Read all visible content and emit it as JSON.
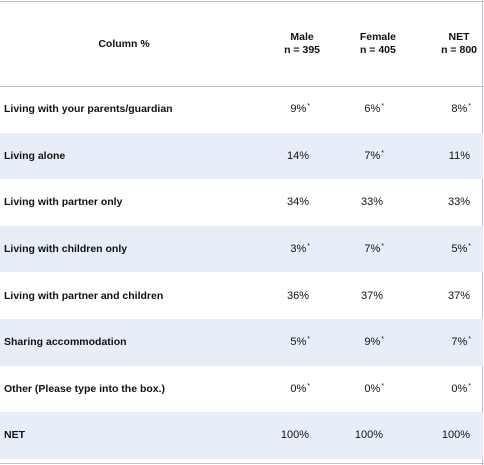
{
  "table": {
    "header": {
      "label": "Column %",
      "columns": [
        {
          "name": "Male",
          "n": "n = 395"
        },
        {
          "name": "Female",
          "n": "n = 405"
        },
        {
          "name": "NET",
          "n": "n = 800"
        }
      ]
    },
    "rows": [
      {
        "label": "Living with your parents/guardian",
        "values": [
          "9%",
          "6%",
          "8%"
        ],
        "sig": [
          "*",
          "*",
          "*"
        ]
      },
      {
        "label": "Living alone",
        "values": [
          "14%",
          "7%",
          "11%"
        ],
        "sig": [
          "",
          "*",
          ""
        ]
      },
      {
        "label": "Living with partner only",
        "values": [
          "34%",
          "33%",
          "33%"
        ],
        "sig": [
          "",
          "",
          ""
        ]
      },
      {
        "label": "Living with children only",
        "values": [
          "3%",
          "7%",
          "5%"
        ],
        "sig": [
          "*",
          "*",
          "*"
        ]
      },
      {
        "label": "Living with partner and children",
        "values": [
          "36%",
          "37%",
          "37%"
        ],
        "sig": [
          "",
          "",
          ""
        ]
      },
      {
        "label": "Sharing accommodation",
        "values": [
          "5%",
          "9%",
          "7%"
        ],
        "sig": [
          "*",
          "*",
          "*"
        ]
      },
      {
        "label": "Other (Please type into the box.)",
        "values": [
          "0%",
          "0%",
          "0%"
        ],
        "sig": [
          "*",
          "*",
          "*"
        ]
      },
      {
        "label": "NET",
        "values": [
          "100%",
          "100%",
          "100%"
        ],
        "sig": [
          "",
          "",
          ""
        ]
      }
    ]
  },
  "colors": {
    "shaded_row": "#e8eef8",
    "rule": "#b9c3cf"
  }
}
